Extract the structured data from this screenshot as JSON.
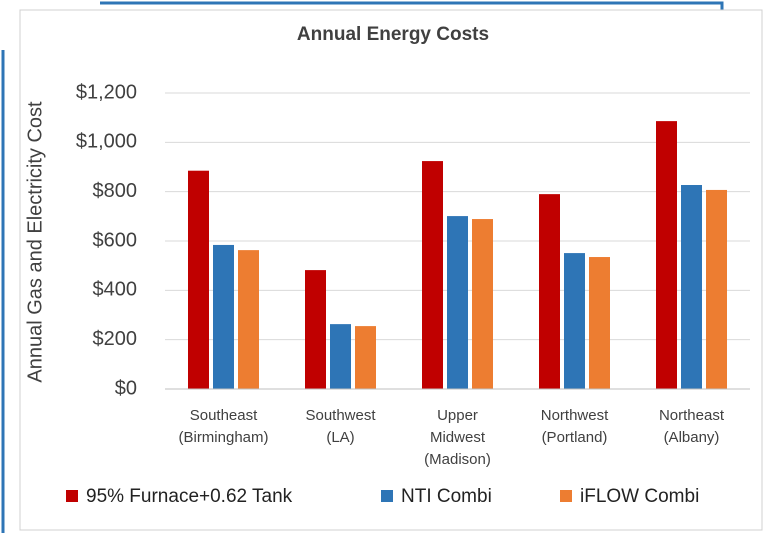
{
  "chart_data": {
    "type": "bar",
    "title": "Annual Energy Costs",
    "y_label": "Annual Gas and Electricity Cost",
    "categories": [
      [
        "Southeast",
        "(Birmingham)"
      ],
      [
        "Southwest",
        "(LA)"
      ],
      [
        "Upper",
        "Midwest",
        "(Madison)"
      ],
      [
        "Northwest",
        "(Portland)"
      ],
      [
        "Northeast",
        "(Albany)"
      ]
    ],
    "series": [
      {
        "name": "95% Furnace+0.62 Tank",
        "color": "#c00000",
        "values": [
          885,
          482,
          924,
          790,
          1086
        ]
      },
      {
        "name": "NTI Combi",
        "color": "#2e75b6",
        "values": [
          584,
          263,
          701,
          551,
          827
        ]
      },
      {
        "name": "iFLOW Combi",
        "color": "#ed7d31",
        "values": [
          563,
          255,
          689,
          535,
          807
        ]
      }
    ],
    "ylim": [
      0,
      1200
    ],
    "yticks": [
      {
        "value": 0,
        "label": "$0"
      },
      {
        "value": 200,
        "label": "$200"
      },
      {
        "value": 400,
        "label": "$400"
      },
      {
        "value": 600,
        "label": "$600"
      },
      {
        "value": 800,
        "label": "$800"
      },
      {
        "value": 1000,
        "label": "$1,000"
      },
      {
        "value": 1200,
        "label": "$1,200"
      }
    ],
    "grid": true,
    "legend": "bottom"
  }
}
